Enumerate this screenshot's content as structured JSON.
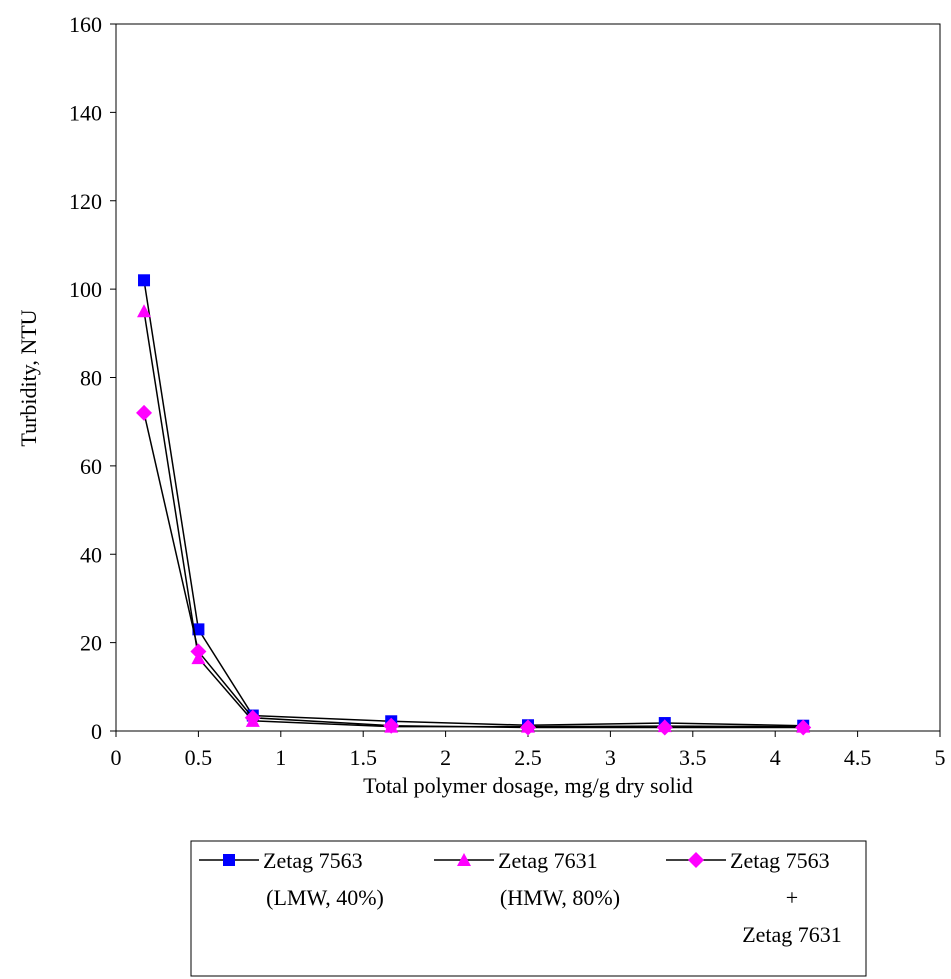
{
  "chart_data": {
    "type": "line",
    "title": "",
    "xlabel": "Total polymer dosage, mg/g dry solid",
    "ylabel": "Turbidity, NTU",
    "xlim": [
      0,
      5
    ],
    "ylim": [
      0,
      160
    ],
    "xticks": [
      0,
      0.5,
      1,
      1.5,
      2,
      2.5,
      3,
      3.5,
      4,
      4.5,
      5
    ],
    "xtick_labels": [
      "0",
      "0.5",
      "1",
      "1.5",
      "2",
      "2.5",
      "3",
      "3.5",
      "4",
      "4.5",
      "5"
    ],
    "yticks": [
      0,
      20,
      40,
      60,
      80,
      100,
      120,
      140,
      160
    ],
    "ytick_labels": [
      "0",
      "20",
      "40",
      "60",
      "80",
      "100",
      "120",
      "140",
      "160"
    ],
    "grid": false,
    "legend_position": "bottom",
    "series": [
      {
        "name": "Zetag 7563 (LMW, 40%)",
        "legend_lines": [
          "Zetag 7563",
          "(LMW, 40%)"
        ],
        "marker": "square",
        "color": "#0000FF",
        "line_color": "#000000",
        "x": [
          0.17,
          0.5,
          0.83,
          1.67,
          2.5,
          3.33,
          4.17
        ],
        "y": [
          102,
          23,
          3.5,
          2.2,
          1.3,
          1.8,
          1.2
        ]
      },
      {
        "name": "Zetag 7631 (HMW, 80%)",
        "legend_lines": [
          "Zetag 7631",
          "(HMW, 80%)"
        ],
        "marker": "triangle",
        "color": "#FF00FF",
        "line_color": "#000000",
        "x": [
          0.17,
          0.5,
          0.83,
          1.67,
          2.5,
          3.33,
          4.17
        ],
        "y": [
          95,
          16.5,
          2.3,
          1.0,
          1.0,
          1.1,
          1.0
        ]
      },
      {
        "name": "Zetag 7563 + Zetag 7631",
        "legend_lines": [
          "Zetag 7563",
          "+",
          "Zetag 7631"
        ],
        "marker": "diamond",
        "color": "#FF00FF",
        "line_color": "#000000",
        "x": [
          0.17,
          0.5,
          0.83,
          1.67,
          2.5,
          3.33,
          4.17
        ],
        "y": [
          72,
          18,
          3.0,
          1.2,
          0.8,
          0.8,
          0.8
        ]
      }
    ]
  }
}
